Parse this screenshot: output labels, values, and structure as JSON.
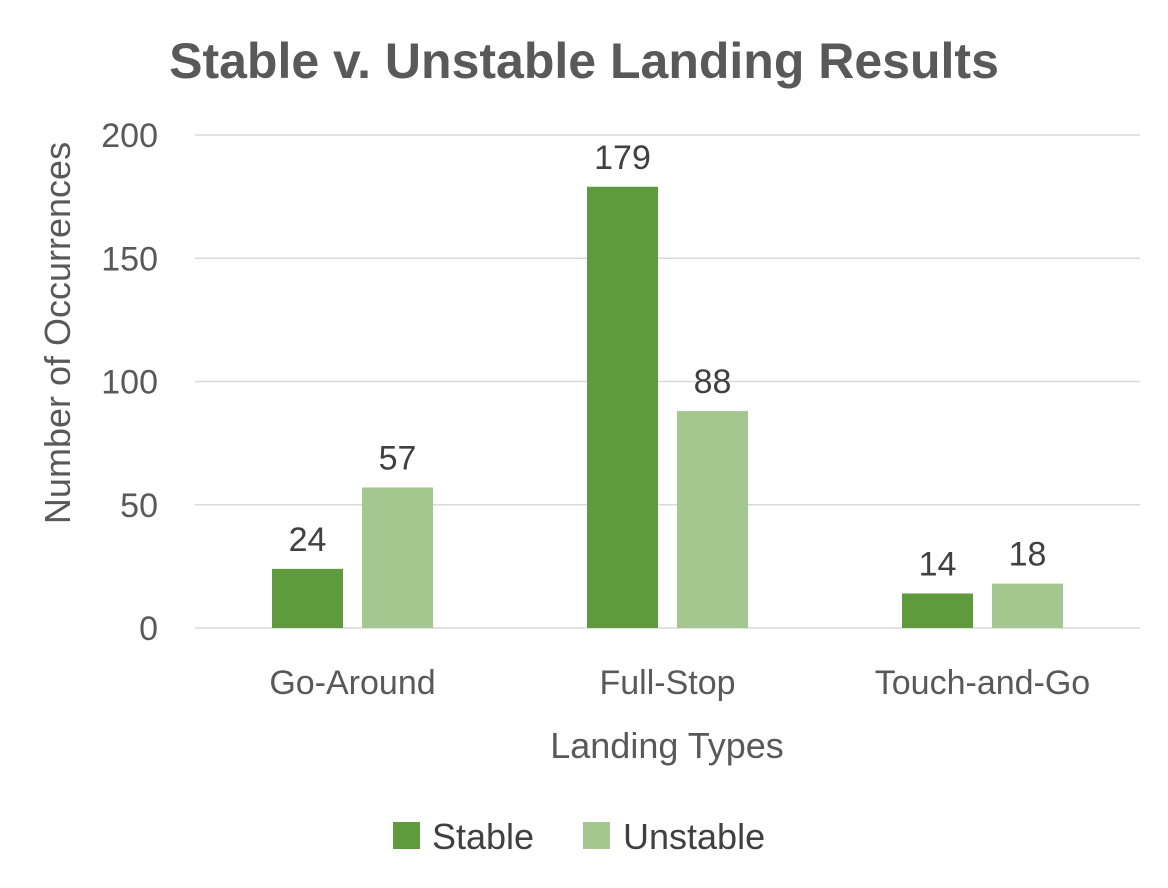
{
  "chart_data": {
    "type": "bar",
    "title": "Stable v. Unstable Landing Results",
    "xlabel": "Landing Types",
    "ylabel": "Number of Occurrences",
    "categories": [
      "Go-Around",
      "Full-Stop",
      "Touch-and-Go"
    ],
    "series": [
      {
        "name": "Stable",
        "values": [
          24,
          179,
          14
        ],
        "color": "#5f9a3c"
      },
      {
        "name": "Unstable",
        "values": [
          57,
          88,
          18
        ],
        "color": "#a3c78f"
      }
    ],
    "ylim": [
      0,
      200
    ],
    "yticks": [
      0,
      50,
      100,
      150,
      200
    ],
    "grid": true,
    "legend_position": "bottom",
    "data_labels": true
  }
}
